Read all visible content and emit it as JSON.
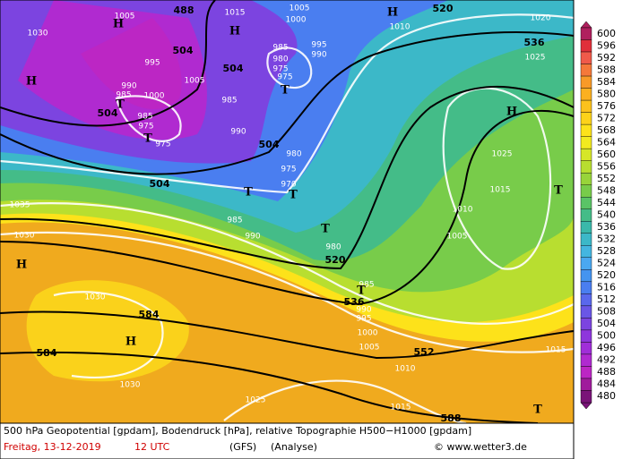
{
  "map": {
    "geopotential_labels": [
      "488",
      "520",
      "536",
      "504",
      "504",
      "504",
      "504",
      "504",
      "520",
      "536",
      "552",
      "584",
      "584",
      "588"
    ],
    "isobar_labels": [
      "1005",
      "1015",
      "1005",
      "1000",
      "1020",
      "1010",
      "1030",
      "995",
      "985",
      "995",
      "990",
      "980",
      "975",
      "1025",
      "975",
      "990",
      "985",
      "1005",
      "1000",
      "985",
      "985",
      "975",
      "975",
      "990",
      "980",
      "975",
      "970",
      "1025",
      "1015",
      "1035",
      "985",
      "1010",
      "990",
      "980",
      "1005",
      "1030",
      "985",
      "990",
      "995",
      "1030",
      "1000",
      "1005",
      "1015",
      "1010",
      "1030",
      "1025",
      "1015"
    ],
    "pressure_centers": [
      "H",
      "H",
      "H",
      "H",
      "T",
      "T",
      "T",
      "H",
      "T",
      "T",
      "T",
      "T",
      "H",
      "T",
      "H",
      "T"
    ],
    "legend": {
      "values": [
        600,
        596,
        592,
        588,
        584,
        580,
        576,
        572,
        568,
        564,
        560,
        556,
        552,
        548,
        544,
        540,
        536,
        532,
        528,
        524,
        520,
        516,
        512,
        508,
        504,
        500,
        496,
        492,
        488,
        484,
        480
      ],
      "colors": [
        "#b0205e",
        "#e0303a",
        "#f05a4a",
        "#f5783a",
        "#f89a28",
        "#fbb020",
        "#fcc21c",
        "#fdd21a",
        "#fde21a",
        "#f2ea20",
        "#d6e628",
        "#b8de30",
        "#98d43a",
        "#78cc4a",
        "#5ac466",
        "#44bc88",
        "#3ab8aa",
        "#3cb8c8",
        "#44b6e0",
        "#4aa8f0",
        "#4494f0",
        "#4a7ef0",
        "#5a68ec",
        "#6a56e6",
        "#7c44e0",
        "#8e36dc",
        "#a02ed8",
        "#b02ad0",
        "#bc26c4",
        "#a01c9c",
        "#7a1478"
      ]
    },
    "footer": {
      "description": "500 hPa Geopotential [gpdam], Bodendruck [hPa], relative Topographie H500−H1000 [gpdam]",
      "date": "Freitag, 13-12-2019",
      "time": "12 UTC",
      "model": "(GFS)",
      "run": "(Analyse)",
      "credit": "© www.wetter3.de"
    }
  }
}
